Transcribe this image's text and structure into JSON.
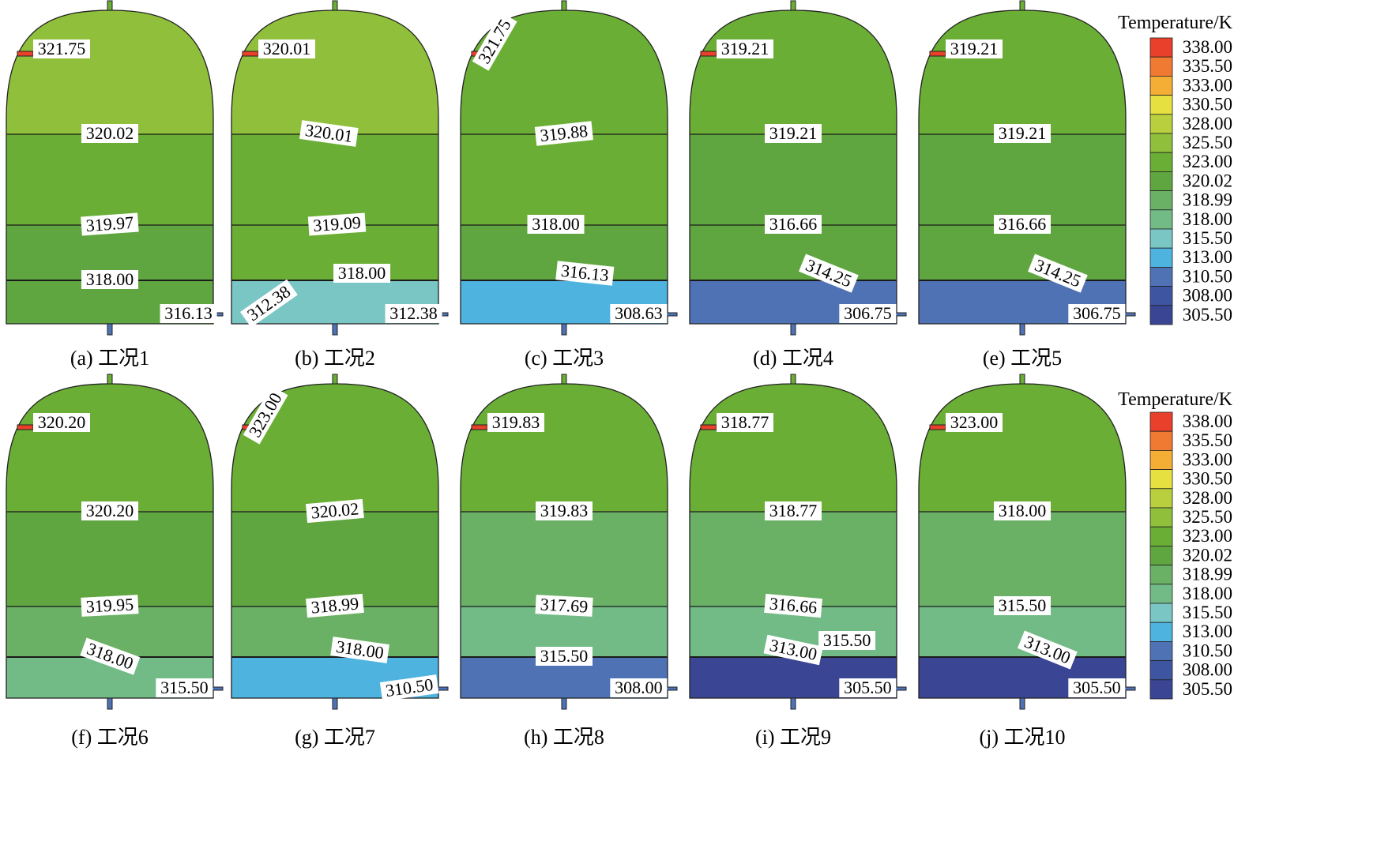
{
  "legend": {
    "title": "Temperature/K",
    "levels": [
      "338.00",
      "335.50",
      "333.00",
      "330.50",
      "328.00",
      "325.50",
      "323.00",
      "320.02",
      "318.99",
      "318.00",
      "315.50",
      "313.00",
      "310.50",
      "308.00",
      "305.50"
    ],
    "colors": [
      "#e8402a",
      "#f07a32",
      "#f5ae35",
      "#e6e041",
      "#b9cf3e",
      "#8fbf3b",
      "#6aae35",
      "#5fa640",
      "#6bb165",
      "#72ba86",
      "#79c6c4",
      "#4fb3e0",
      "#4f72b5",
      "#3e55a2",
      "#3a4594"
    ]
  },
  "panels": [
    {
      "caption": "(a) 工况1",
      "top_temp": "321.75",
      "bands": [
        {
          "label": "320.02",
          "color": "#8fbf3b"
        },
        {
          "label": "319.97",
          "color": "#6aae35"
        },
        {
          "label": "318.00",
          "color": "#5fa640"
        },
        {
          "label": "316.13",
          "color": "#5fa640"
        }
      ],
      "extra_labels": []
    },
    {
      "caption": "(b) 工况2",
      "top_temp": "320.01",
      "bands": [
        {
          "label": "320.01",
          "color": "#8fbf3b"
        },
        {
          "label": "319.09",
          "color": "#6aae35"
        },
        {
          "label": "318.00",
          "color": "#6aae35"
        },
        {
          "label": "312.38",
          "color": "#79c6c4"
        }
      ],
      "extra_labels": [
        "312.38"
      ]
    },
    {
      "caption": "(c) 工况3",
      "top_temp": "321.75",
      "bands": [
        {
          "label": "319.88",
          "color": "#6aae35"
        },
        {
          "label": "318.00",
          "color": "#6aae35"
        },
        {
          "label": "316.13",
          "color": "#5fa640"
        },
        {
          "label": "308.63",
          "color": "#4fb3e0"
        }
      ],
      "extra_labels": []
    },
    {
      "caption": "(d) 工况4",
      "top_temp": "319.21",
      "bands": [
        {
          "label": "319.21",
          "color": "#6aae35"
        },
        {
          "label": "316.66",
          "color": "#5fa640"
        },
        {
          "label": "314.25",
          "color": "#5fa640"
        },
        {
          "label": "306.75",
          "color": "#4f72b5"
        }
      ],
      "extra_labels": []
    },
    {
      "caption": "(e) 工况5",
      "top_temp": "319.21",
      "bands": [
        {
          "label": "319.21",
          "color": "#6aae35"
        },
        {
          "label": "316.66",
          "color": "#5fa640"
        },
        {
          "label": "314.25",
          "color": "#5fa640"
        },
        {
          "label": "306.75",
          "color": "#4f72b5"
        }
      ],
      "extra_labels": []
    },
    {
      "caption": "(f) 工况6",
      "top_temp": "320.20",
      "bands": [
        {
          "label": "320.20",
          "color": "#6aae35"
        },
        {
          "label": "319.95",
          "color": "#5fa640"
        },
        {
          "label": "318.00",
          "color": "#6bb165"
        },
        {
          "label": "315.50",
          "color": "#72ba86"
        }
      ],
      "extra_labels": []
    },
    {
      "caption": "(g) 工况7",
      "top_temp": "323.00",
      "bands": [
        {
          "label": "320.02",
          "color": "#6aae35"
        },
        {
          "label": "318.99",
          "color": "#5fa640"
        },
        {
          "label": "318.00",
          "color": "#6bb165"
        },
        {
          "label": "310.50",
          "color": "#4fb3e0"
        }
      ],
      "extra_labels": []
    },
    {
      "caption": "(h) 工况8",
      "top_temp": "319.83",
      "bands": [
        {
          "label": "319.83",
          "color": "#6aae35"
        },
        {
          "label": "317.69",
          "color": "#6bb165"
        },
        {
          "label": "315.50",
          "color": "#72ba86"
        },
        {
          "label": "308.00",
          "color": "#4f72b5"
        }
      ],
      "extra_labels": []
    },
    {
      "caption": "(i) 工况9",
      "top_temp": "318.77",
      "bands": [
        {
          "label": "318.77",
          "color": "#6aae35"
        },
        {
          "label": "316.66",
          "color": "#6bb165"
        },
        {
          "label": "313.00",
          "color": "#72ba86"
        },
        {
          "label": "305.50",
          "color": "#3a4594"
        }
      ],
      "extra_labels": [
        "315.50"
      ]
    },
    {
      "caption": "(j) 工况10",
      "top_temp": "323.00",
      "bands": [
        {
          "label": "318.00",
          "color": "#6aae35"
        },
        {
          "label": "315.50",
          "color": "#6bb165"
        },
        {
          "label": "313.00",
          "color": "#72ba86"
        },
        {
          "label": "305.50",
          "color": "#3a4594"
        }
      ],
      "extra_labels": []
    }
  ]
}
